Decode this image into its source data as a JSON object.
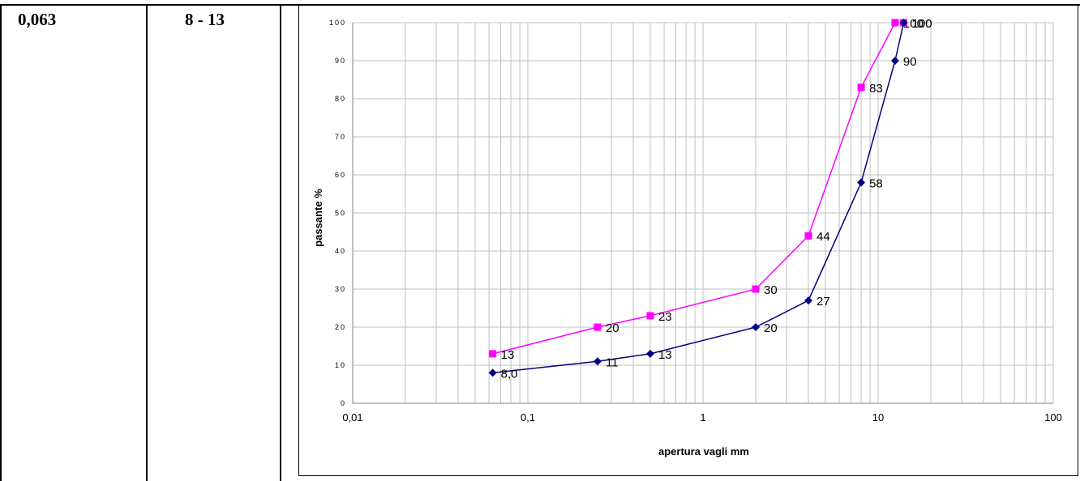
{
  "table": {
    "col1_value": "0,063",
    "col2_value": "8 - 13"
  },
  "chart_data": {
    "type": "line",
    "xscale": "log",
    "xlim": [
      0.01,
      100
    ],
    "ylim": [
      0,
      100
    ],
    "xlabel": "apertura vagli mm",
    "ylabel": "passante %",
    "x_tick_labels": [
      "0,01",
      "0,1",
      "1",
      "10",
      "100"
    ],
    "y_tick_labels": [
      "0",
      "10",
      "20",
      "30",
      "40",
      "50",
      "60",
      "70",
      "80",
      "90",
      "100"
    ],
    "grid": true,
    "legend": "none",
    "series": [
      {
        "color": "#ff00ff",
        "marker": "square",
        "points": [
          {
            "x": 0.063,
            "y": 13,
            "label": "13"
          },
          {
            "x": 0.25,
            "y": 20,
            "label": "20"
          },
          {
            "x": 0.5,
            "y": 23,
            "label": "23"
          },
          {
            "x": 2,
            "y": 30,
            "label": "30"
          },
          {
            "x": 4,
            "y": 44,
            "label": "44"
          },
          {
            "x": 8,
            "y": 83,
            "label": "83"
          },
          {
            "x": 12.5,
            "y": 100,
            "label": "100"
          },
          {
            "x": 14,
            "y": 100,
            "label": "100"
          }
        ]
      },
      {
        "color": "#000080",
        "marker": "diamond",
        "points": [
          {
            "x": 0.063,
            "y": 8,
            "label": "8,0"
          },
          {
            "x": 0.25,
            "y": 11,
            "label": "11"
          },
          {
            "x": 0.5,
            "y": 13,
            "label": "13"
          },
          {
            "x": 2,
            "y": 20,
            "label": "20"
          },
          {
            "x": 4,
            "y": 27,
            "label": "27"
          },
          {
            "x": 8,
            "y": 58,
            "label": "58"
          },
          {
            "x": 12.5,
            "y": 90,
            "label": "90"
          },
          {
            "x": 14,
            "y": 100,
            "label": "100"
          }
        ]
      }
    ]
  }
}
